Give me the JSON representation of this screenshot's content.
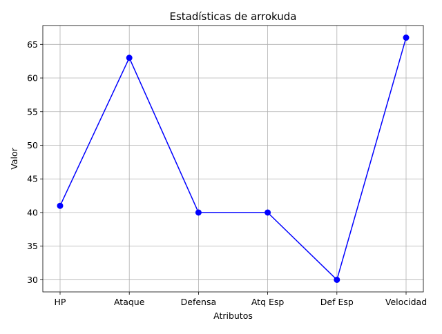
{
  "chart_data": {
    "type": "line",
    "title": "Estadísticas de arrokuda",
    "xlabel": "Atributos",
    "ylabel": "Valor",
    "categories": [
      "HP",
      "Ataque",
      "Defensa",
      "Atq Esp",
      "Def Esp",
      "Velocidad"
    ],
    "series": [
      {
        "values": [
          41,
          63,
          40,
          40,
          30,
          66
        ],
        "color": "#0000ff",
        "marker": "circle"
      }
    ],
    "ylim": [
      28.2,
      67.8
    ],
    "yticks": [
      30,
      35,
      40,
      45,
      50,
      55,
      60,
      65
    ],
    "grid": true
  }
}
